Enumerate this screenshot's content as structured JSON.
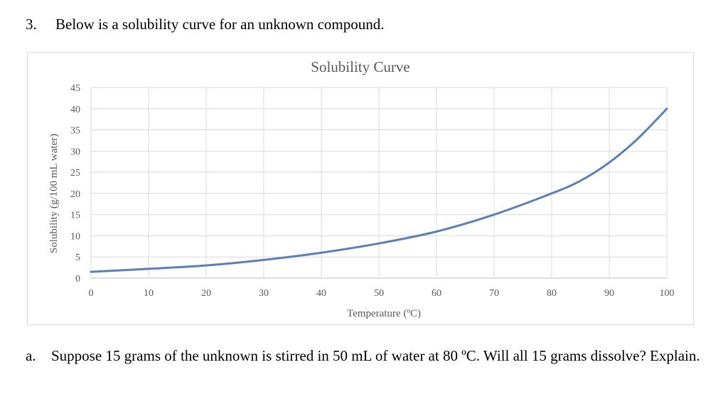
{
  "question": {
    "number": "3.",
    "prompt": "Below is a solubility curve for an unknown compound."
  },
  "subquestion": {
    "label": "a.",
    "text": "Suppose 15 grams of the unknown is stirred in 50 mL of water at 80 ºC. Will all 15 grams dissolve? Explain."
  },
  "chart_data": {
    "type": "line",
    "title": "Solubility Curve",
    "xlabel": "Temperature (ºC)",
    "ylabel": "Solubility (g/100 mL water)",
    "xlim": [
      0,
      100
    ],
    "ylim": [
      0,
      45
    ],
    "x_ticks": [
      0,
      10,
      20,
      30,
      40,
      50,
      60,
      70,
      80,
      90,
      100
    ],
    "y_ticks": [
      0,
      5,
      10,
      15,
      20,
      25,
      30,
      35,
      40,
      45
    ],
    "grid": true,
    "legend": "none",
    "series": [
      {
        "color": "#5b7fb8",
        "x": [
          0,
          10,
          20,
          30,
          40,
          50,
          60,
          70,
          80,
          85,
          90,
          95,
          100
        ],
        "y": [
          1.5,
          2.2,
          3.0,
          4.3,
          6.0,
          8.2,
          11.0,
          15.0,
          20.0,
          23.0,
          27.3,
          33.0,
          40.0
        ]
      }
    ]
  }
}
